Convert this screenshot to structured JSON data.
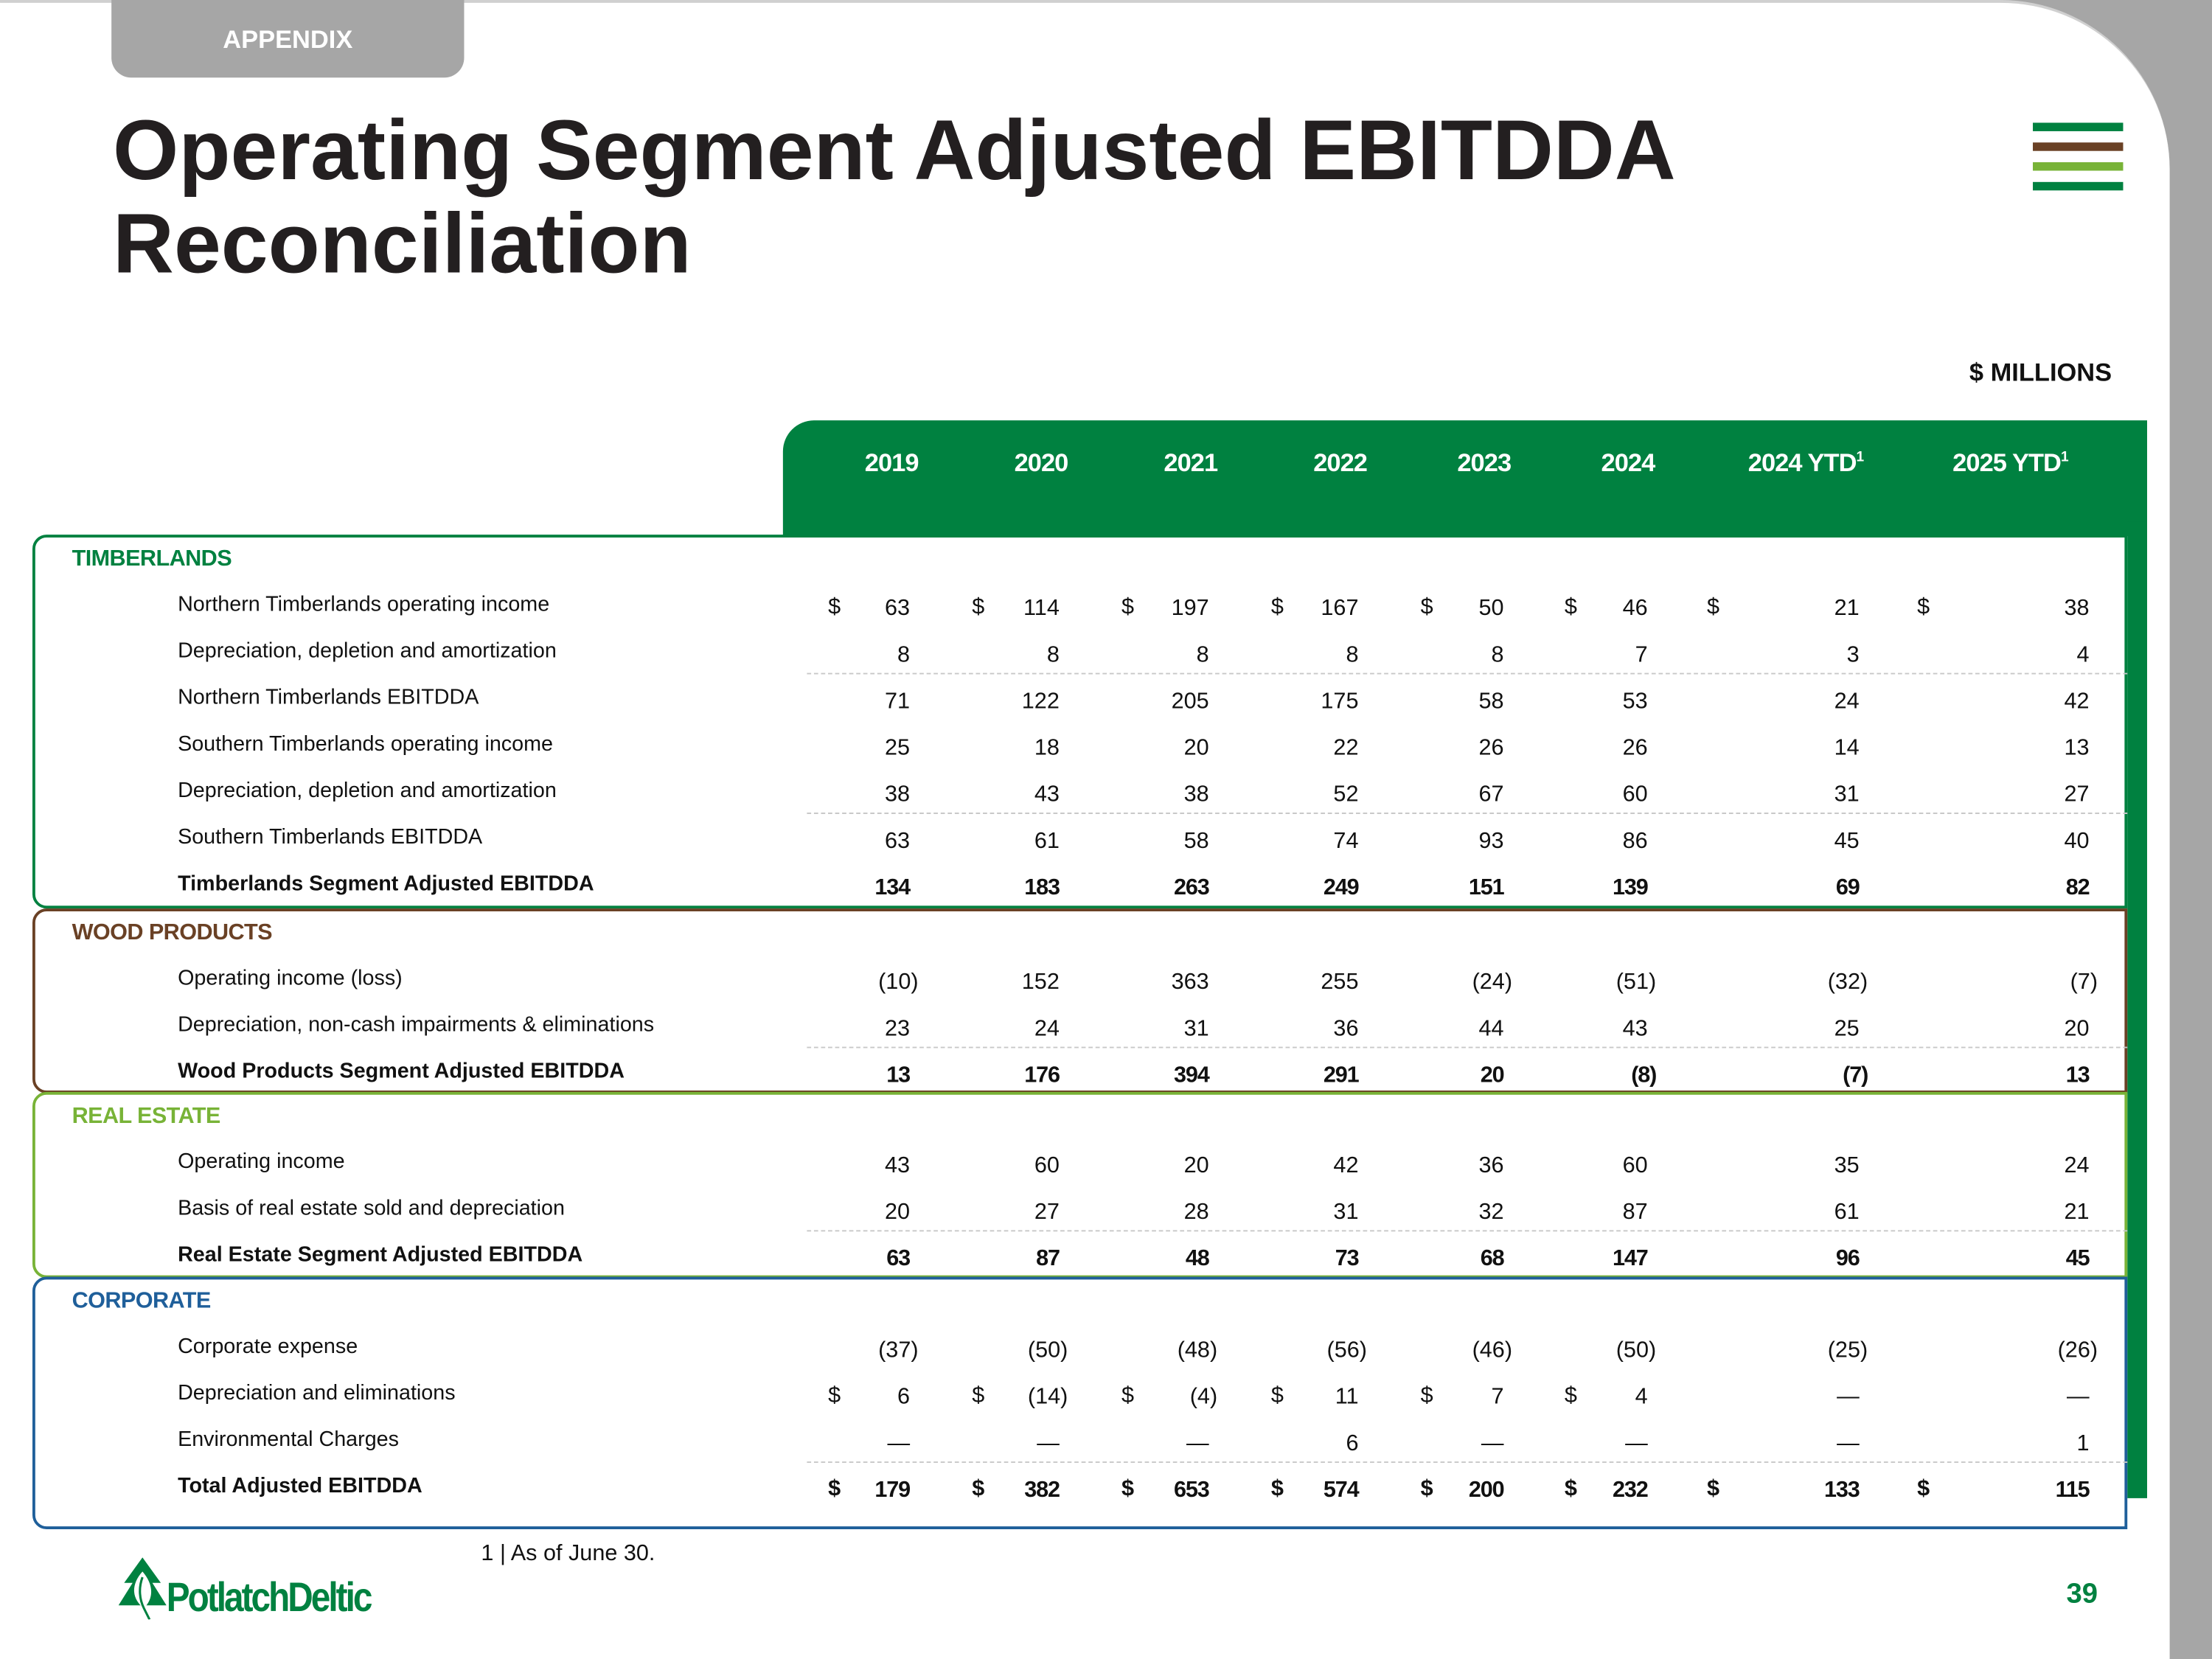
{
  "header": {
    "tab_label": "APPENDIX",
    "title_line1": "Operating Segment Adjusted EBITDDA",
    "title_line2": "Reconciliation",
    "units": "$ MILLIONS"
  },
  "colors": {
    "green": "#008140",
    "brown": "#6a4125",
    "light_green": "#78b337",
    "blue": "#1f5f9a",
    "gray": "#a6a6a6"
  },
  "columns": [
    {
      "label": "2019",
      "sup": ""
    },
    {
      "label": "2020",
      "sup": ""
    },
    {
      "label": "2021",
      "sup": ""
    },
    {
      "label": "2022",
      "sup": ""
    },
    {
      "label": "2023",
      "sup": ""
    },
    {
      "label": "2024",
      "sup": ""
    },
    {
      "label": "2024 YTD",
      "sup": "1"
    },
    {
      "label": "2025 YTD",
      "sup": "1"
    }
  ],
  "sections": [
    {
      "title": "TIMBERLANDS",
      "color": "#008140",
      "rows": [
        {
          "label": "Northern Timberlands operating income",
          "bold": false,
          "dashed_above": false,
          "dollars": [
            "$",
            "$",
            "$",
            "$",
            "$",
            "$",
            "$",
            "$"
          ],
          "values": [
            "63",
            "114",
            "197",
            "167",
            "50",
            "46",
            "21",
            "38"
          ]
        },
        {
          "label": "Depreciation, depletion and amortization",
          "bold": false,
          "dashed_above": false,
          "dollars": [
            "",
            "",
            "",
            "",
            "",
            "",
            "",
            ""
          ],
          "values": [
            "8",
            "8",
            "8",
            "8",
            "8",
            "7",
            "3",
            "4"
          ]
        },
        {
          "label": "Northern Timberlands EBITDDA",
          "bold": false,
          "dashed_above": true,
          "dollars": [
            "",
            "",
            "",
            "",
            "",
            "",
            "",
            ""
          ],
          "values": [
            "71",
            "122",
            "205",
            "175",
            "58",
            "53",
            "24",
            "42"
          ]
        },
        {
          "label": "Southern Timberlands operating income",
          "bold": false,
          "dashed_above": false,
          "dollars": [
            "",
            "",
            "",
            "",
            "",
            "",
            "",
            ""
          ],
          "values": [
            "25",
            "18",
            "20",
            "22",
            "26",
            "26",
            "14",
            "13"
          ]
        },
        {
          "label": "Depreciation, depletion and amortization",
          "bold": false,
          "dashed_above": false,
          "dollars": [
            "",
            "",
            "",
            "",
            "",
            "",
            "",
            ""
          ],
          "values": [
            "38",
            "43",
            "38",
            "52",
            "67",
            "60",
            "31",
            "27"
          ]
        },
        {
          "label": "Southern Timberlands EBITDDA",
          "bold": false,
          "dashed_above": true,
          "dollars": [
            "",
            "",
            "",
            "",
            "",
            "",
            "",
            ""
          ],
          "values": [
            "63",
            "61",
            "58",
            "74",
            "93",
            "86",
            "45",
            "40"
          ]
        },
        {
          "label": "Timberlands Segment Adjusted EBITDDA",
          "bold": true,
          "dashed_above": false,
          "dollars": [
            "",
            "",
            "",
            "",
            "",
            "",
            "",
            ""
          ],
          "values": [
            "134",
            "183",
            "263",
            "249",
            "151",
            "139",
            "69",
            "82"
          ]
        }
      ]
    },
    {
      "title": "WOOD PRODUCTS",
      "color": "#6a4125",
      "rows": [
        {
          "label": "Operating income (loss)",
          "bold": false,
          "dashed_above": false,
          "dollars": [
            "",
            "",
            "",
            "",
            "",
            "",
            "",
            ""
          ],
          "values": [
            "(10)",
            "152",
            "363",
            "255",
            "(24)",
            "(51)",
            "(32)",
            "(7)"
          ]
        },
        {
          "label": "Depreciation, non-cash impairments & eliminations",
          "bold": false,
          "dashed_above": false,
          "dollars": [
            "",
            "",
            "",
            "",
            "",
            "",
            "",
            ""
          ],
          "values": [
            "23",
            "24",
            "31",
            "36",
            "44",
            "43",
            "25",
            "20"
          ]
        },
        {
          "label": "Wood Products Segment Adjusted EBITDDA",
          "bold": true,
          "dashed_above": true,
          "dollars": [
            "",
            "",
            "",
            "",
            "",
            "",
            "",
            ""
          ],
          "values": [
            "13",
            "176",
            "394",
            "291",
            "20",
            "(8)",
            "(7)",
            "13"
          ]
        }
      ]
    },
    {
      "title": "REAL ESTATE",
      "color": "#78b337",
      "rows": [
        {
          "label": "Operating income",
          "bold": false,
          "dashed_above": false,
          "dollars": [
            "",
            "",
            "",
            "",
            "",
            "",
            "",
            ""
          ],
          "values": [
            "43",
            "60",
            "20",
            "42",
            "36",
            "60",
            "35",
            "24"
          ]
        },
        {
          "label": "Basis of real estate sold and depreciation",
          "bold": false,
          "dashed_above": false,
          "dollars": [
            "",
            "",
            "",
            "",
            "",
            "",
            "",
            ""
          ],
          "values": [
            "20",
            "27",
            "28",
            "31",
            "32",
            "87",
            "61",
            "21"
          ]
        },
        {
          "label": "Real Estate Segment Adjusted EBITDDA",
          "bold": true,
          "dashed_above": true,
          "dollars": [
            "",
            "",
            "",
            "",
            "",
            "",
            "",
            ""
          ],
          "values": [
            "63",
            "87",
            "48",
            "73",
            "68",
            "147",
            "96",
            "45"
          ]
        }
      ]
    },
    {
      "title": "CORPORATE",
      "color": "#1f5f9a",
      "rows": [
        {
          "label": "Corporate expense",
          "bold": false,
          "dashed_above": false,
          "dollars": [
            "",
            "",
            "",
            "",
            "",
            "",
            "",
            ""
          ],
          "values": [
            "(37)",
            "(50)",
            "(48)",
            "(56)",
            "(46)",
            "(50)",
            "(25)",
            "(26)"
          ]
        },
        {
          "label": "Depreciation and eliminations",
          "bold": false,
          "dashed_above": false,
          "dollars": [
            "$",
            "$",
            "$",
            "$",
            "$",
            "$",
            "",
            ""
          ],
          "values": [
            "6",
            "(14)",
            "(4)",
            "11",
            "7",
            "4",
            "—",
            "—"
          ]
        },
        {
          "label": "Environmental Charges",
          "bold": false,
          "dashed_above": false,
          "dollars": [
            "",
            "",
            "",
            "",
            "",
            "",
            "",
            ""
          ],
          "values": [
            "—",
            "—",
            "—",
            "6",
            "—",
            "—",
            "—",
            "1"
          ]
        },
        {
          "label": "Total Adjusted EBITDDA",
          "bold": true,
          "dashed_above": true,
          "dollars": [
            "$",
            "$",
            "$",
            "$",
            "$",
            "$",
            "$",
            "$"
          ],
          "values": [
            "179",
            "382",
            "653",
            "574",
            "200",
            "232",
            "133",
            "115"
          ]
        }
      ]
    }
  ],
  "footnote": "1 | As of June 30.",
  "logo_text": "PotlatchDeltic",
  "page_number": "39"
}
